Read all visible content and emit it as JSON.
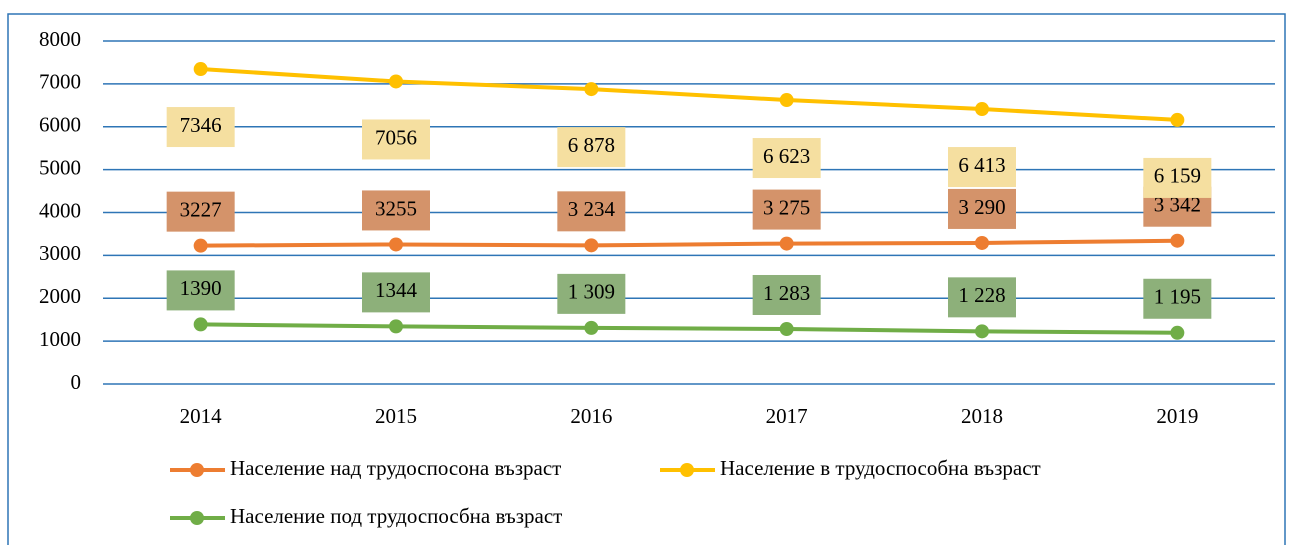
{
  "chart_data": {
    "type": "line",
    "categories": [
      "2014",
      "2015",
      "2016",
      "2017",
      "2018",
      "2019"
    ],
    "series": [
      {
        "name": "Население над трудоспосона възраст",
        "color": "#ED7D31",
        "label_color": "#D4936A",
        "label_side": "above",
        "values": [
          3227,
          3255,
          3234,
          3275,
          3290,
          3342
        ],
        "value_labels": [
          "3227",
          "3255",
          "3 234",
          "3 275",
          "3 290",
          "3 342"
        ]
      },
      {
        "name": "Население в трудоспособна възраст",
        "color": "#FFC000",
        "label_color": "#F5DFA0",
        "label_side": "below",
        "values": [
          7346,
          7056,
          6878,
          6623,
          6413,
          6159
        ],
        "value_labels": [
          "7346",
          "7056",
          "6 878",
          "6 623",
          "6 413",
          "6 159"
        ]
      },
      {
        "name": "Население под трудоспосбна възраст",
        "color": "#70AD47",
        "label_color": "#8DB07A",
        "label_side": "above",
        "values": [
          1390,
          1344,
          1309,
          1283,
          1228,
          1195
        ],
        "value_labels": [
          "1390",
          "1344",
          "1 309",
          "1 283",
          "1 228",
          "1 195"
        ]
      }
    ],
    "ylim": [
      0,
      8000
    ],
    "yticks": [
      0,
      1000,
      2000,
      3000,
      4000,
      5000,
      6000,
      7000,
      8000
    ],
    "grid": true,
    "legend": "bottom"
  }
}
